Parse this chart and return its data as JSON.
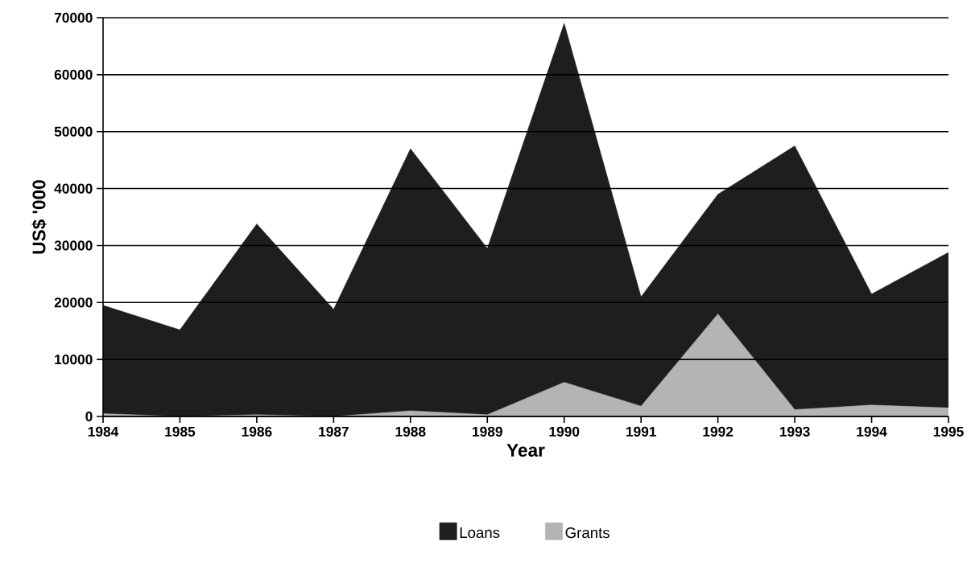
{
  "chart_data": {
    "type": "area",
    "xlabel": "Year",
    "ylabel": "US$ '000",
    "x": [
      1984,
      1985,
      1986,
      1987,
      1988,
      1989,
      1990,
      1991,
      1992,
      1993,
      1994,
      1995
    ],
    "series": [
      {
        "name": "Loans",
        "color": "#1e1e1e",
        "values": [
          19500,
          15200,
          33800,
          18800,
          47000,
          29500,
          69000,
          21000,
          39000,
          47500,
          21500,
          28800
        ]
      },
      {
        "name": "Grants",
        "color": "#b4b4b4",
        "values": [
          500,
          0,
          300,
          0,
          1000,
          300,
          6000,
          1800,
          18000,
          1200,
          2000,
          1500
        ]
      }
    ],
    "xlim": [
      1984,
      1995
    ],
    "xticks": [
      1984,
      1985,
      1986,
      1987,
      1988,
      1989,
      1990,
      1991,
      1992,
      1993,
      1994,
      1995
    ],
    "ylim": [
      0,
      70000
    ],
    "yticks": [
      0,
      10000,
      20000,
      30000,
      40000,
      50000,
      60000,
      70000
    ],
    "grid": "y",
    "legend": "bottom"
  }
}
